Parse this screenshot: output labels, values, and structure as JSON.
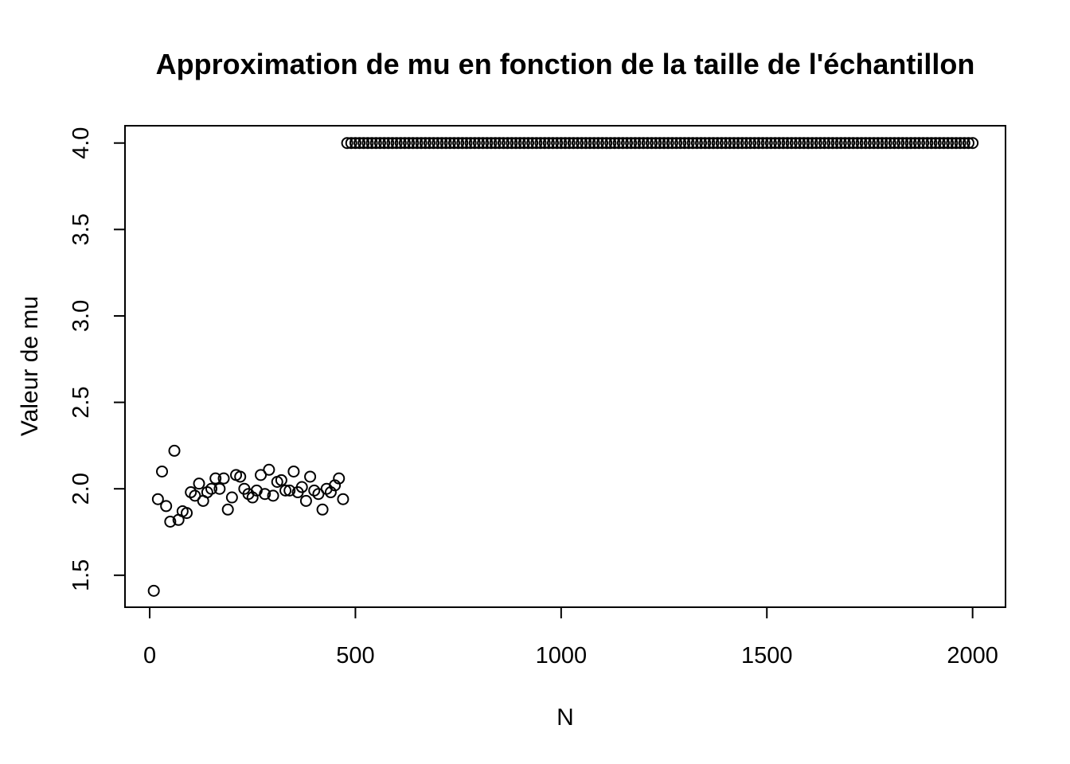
{
  "chart_data": {
    "type": "scatter",
    "title": "Approximation de mu en fonction de la taille de l'échantillon",
    "xlabel": "N",
    "ylabel": "Valeur de mu",
    "xlim": [
      -60,
      2080
    ],
    "ylim": [
      1.315,
      4.1
    ],
    "xticks": [
      0,
      500,
      1000,
      1500,
      2000
    ],
    "xtick_labels": [
      "0",
      "500",
      "1000",
      "1500",
      "2000"
    ],
    "yticks": [
      1.5,
      2.0,
      2.5,
      3.0,
      3.5,
      4.0
    ],
    "ytick_labels": [
      "1.5",
      "2.0",
      "2.5",
      "3.0",
      "3.5",
      "4.0"
    ],
    "grid": false,
    "legend": "none",
    "marker": "open-circle",
    "color": "#000000",
    "series": [
      {
        "x": [
          10,
          20,
          30,
          40,
          50,
          60,
          70,
          80,
          90,
          100,
          110,
          120,
          130,
          140,
          150,
          160,
          170,
          180,
          190,
          200,
          210,
          220,
          230,
          240,
          250,
          260,
          270,
          280,
          290,
          300,
          310,
          320,
          330,
          340,
          350,
          360,
          370,
          380,
          390,
          400,
          410,
          420,
          430,
          440,
          450,
          460,
          470
        ],
        "y": [
          1.41,
          1.94,
          2.1,
          1.9,
          1.81,
          2.22,
          1.82,
          1.87,
          1.86,
          1.98,
          1.96,
          2.03,
          1.93,
          1.98,
          2.0,
          2.06,
          2.0,
          2.06,
          1.88,
          1.95,
          2.08,
          2.07,
          2.0,
          1.97,
          1.95,
          1.99,
          2.08,
          1.97,
          2.11,
          1.96,
          2.04,
          2.05,
          1.99,
          1.99,
          2.1,
          1.98,
          2.01,
          1.93,
          2.07,
          1.99,
          1.97,
          1.88,
          2.0,
          1.98,
          2.02,
          2.06,
          1.94
        ]
      },
      {
        "x_start": 480,
        "x_end": 2000,
        "x_step": 10,
        "y_constant": 4.0
      }
    ]
  }
}
